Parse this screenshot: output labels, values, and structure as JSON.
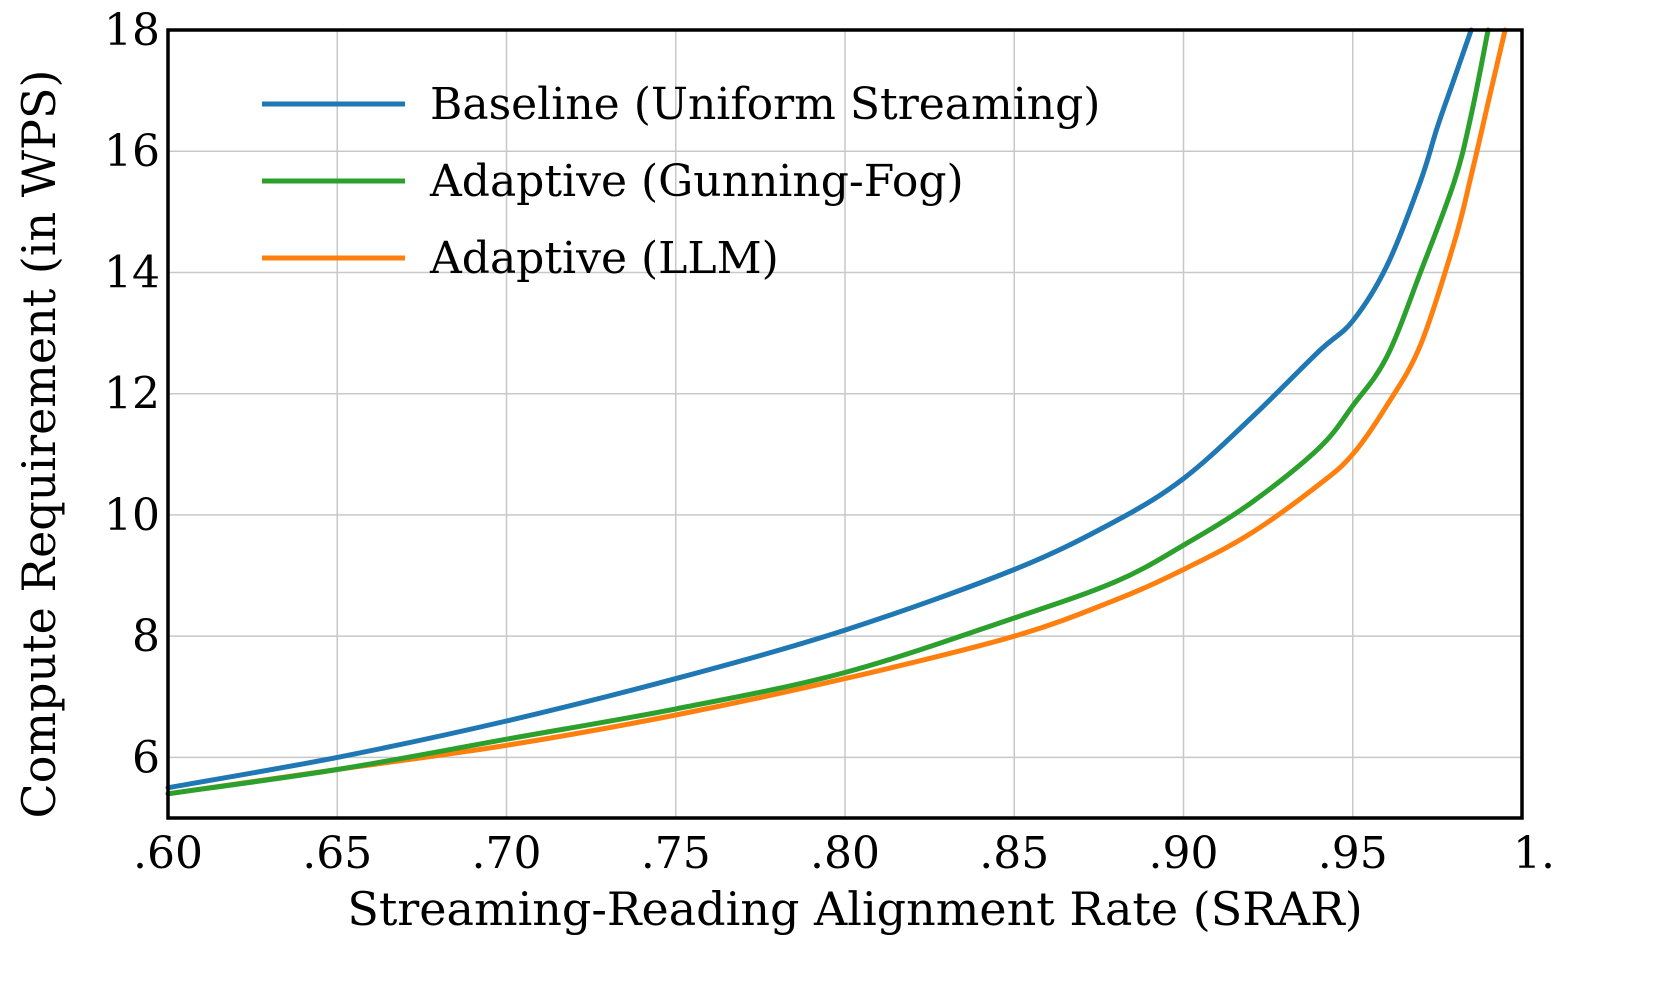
{
  "chart_data": {
    "type": "line",
    "title": "",
    "xlabel": "Streaming-Reading Alignment Rate (SRAR)",
    "ylabel": "Compute Requirement (in WPS)",
    "xlim": [
      0.6,
      1.0
    ],
    "ylim": [
      5,
      18
    ],
    "x_ticks": [
      0.6,
      0.65,
      0.7,
      0.75,
      0.8,
      0.85,
      0.9,
      0.95,
      1.0
    ],
    "x_tick_labels": [
      ".60",
      ".65",
      ".70",
      ".75",
      ".80",
      ".85",
      ".90",
      ".95",
      "1."
    ],
    "y_ticks": [
      6,
      8,
      10,
      12,
      14,
      16,
      18
    ],
    "y_tick_labels": [
      "6",
      "8",
      "10",
      "12",
      "14",
      "16",
      "18"
    ],
    "grid": true,
    "legend_position": "top-left",
    "series": [
      {
        "name": "Baseline (Uniform Streaming)",
        "color": "#1f77b4",
        "x": [
          0.6,
          0.65,
          0.7,
          0.75,
          0.8,
          0.85,
          0.88,
          0.9,
          0.92,
          0.94,
          0.95,
          0.96,
          0.97,
          0.975,
          0.98,
          0.985
        ],
        "y": [
          5.5,
          6.0,
          6.6,
          7.3,
          8.1,
          9.1,
          9.9,
          10.6,
          11.6,
          12.7,
          13.2,
          14.1,
          15.5,
          16.4,
          17.2,
          18.0
        ]
      },
      {
        "name": "Adaptive (Gunning-Fog)",
        "color": "#2ca02c",
        "x": [
          0.6,
          0.65,
          0.7,
          0.75,
          0.8,
          0.85,
          0.88,
          0.9,
          0.92,
          0.94,
          0.95,
          0.96,
          0.97,
          0.98,
          0.985,
          0.99
        ],
        "y": [
          5.4,
          5.8,
          6.3,
          6.8,
          7.4,
          8.3,
          8.9,
          9.5,
          10.2,
          11.1,
          11.8,
          12.6,
          14.0,
          15.5,
          16.6,
          18.0
        ]
      },
      {
        "name": "Adaptive (LLM)",
        "color": "#ff7f0e",
        "x": [
          0.6,
          0.65,
          0.7,
          0.75,
          0.8,
          0.85,
          0.88,
          0.9,
          0.92,
          0.94,
          0.95,
          0.96,
          0.97,
          0.98,
          0.985,
          0.99,
          0.995
        ],
        "y": [
          5.4,
          5.8,
          6.2,
          6.7,
          7.3,
          8.0,
          8.6,
          9.1,
          9.7,
          10.5,
          11.0,
          11.8,
          12.8,
          14.5,
          15.6,
          16.8,
          18.0
        ]
      }
    ]
  }
}
